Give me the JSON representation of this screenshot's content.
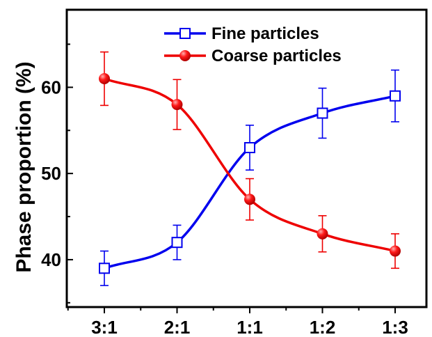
{
  "chart_data": {
    "type": "line",
    "title": "",
    "xlabel": "",
    "ylabel": "Phase proportion (%)",
    "categories": [
      "3:1",
      "2:1",
      "1:1",
      "1:2",
      "1:3"
    ],
    "ylim": [
      34.5,
      69
    ],
    "yticks": [
      40,
      50,
      60
    ],
    "grid": false,
    "legend_position": "top-right",
    "series": [
      {
        "name": "Fine particles",
        "color": "#0000ee",
        "marker": "open-square",
        "values": [
          39,
          42,
          53,
          57,
          59
        ],
        "errors": [
          2,
          2,
          2.6,
          2.9,
          3
        ]
      },
      {
        "name": "Coarse particles",
        "color": "#ee0000",
        "marker": "filled-circle",
        "values": [
          61,
          58,
          47,
          43,
          41
        ],
        "errors": [
          3.1,
          2.9,
          2.4,
          2.1,
          2
        ]
      }
    ]
  }
}
